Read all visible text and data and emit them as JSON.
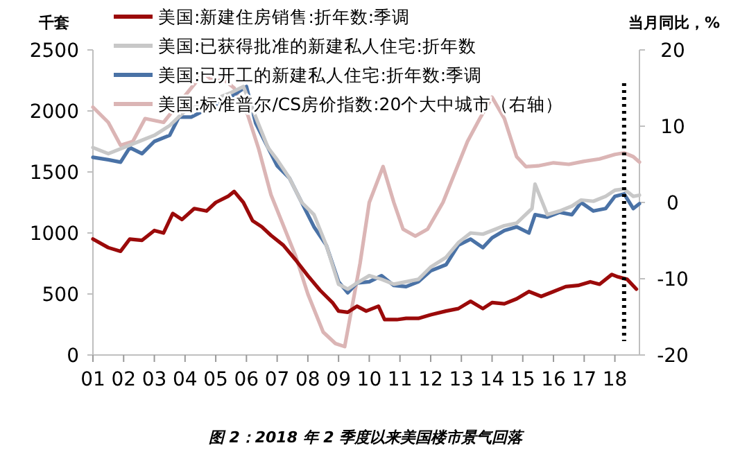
{
  "chart_data": {
    "type": "line",
    "title": "图 2：2018 年 2 季度以来美国楼市景气回落",
    "ylabel": "千套",
    "y2label": "当月同比，%",
    "xlim": [
      1,
      18.8
    ],
    "xticks": [
      {
        "value": 1,
        "label": "01"
      },
      {
        "value": 2,
        "label": "02"
      },
      {
        "value": 3,
        "label": "03"
      },
      {
        "value": 4,
        "label": "04"
      },
      {
        "value": 5,
        "label": "05"
      },
      {
        "value": 6,
        "label": "06"
      },
      {
        "value": 7,
        "label": "07"
      },
      {
        "value": 8,
        "label": "08"
      },
      {
        "value": 9,
        "label": "09"
      },
      10,
      11,
      12,
      13,
      14,
      15,
      16,
      17,
      18
    ],
    "ylim": [
      0,
      2500
    ],
    "yticks": [
      0,
      500,
      1000,
      1500,
      2000,
      2500
    ],
    "y2lim": [
      -20,
      20
    ],
    "y2ticks": [
      -20,
      -10,
      0,
      10,
      20
    ],
    "grid": false,
    "legend": "top left",
    "marker": "none",
    "line_style": "solid",
    "ref_lines": [
      {
        "axis": "x",
        "value": 18.3,
        "color": "#000000",
        "line_style": "dotted"
      }
    ],
    "series": [
      {
        "name": "美国:新建住房销售:折年数:季调",
        "color": "#9b0a0a",
        "x": [
          1.0,
          1.5,
          1.9,
          2.2,
          2.6,
          3.0,
          3.3,
          3.6,
          3.9,
          4.3,
          4.7,
          5.0,
          5.4,
          5.6,
          5.9,
          6.2,
          6.5,
          6.8,
          7.2,
          7.6,
          8.0,
          8.4,
          8.8,
          9.0,
          9.3,
          9.6,
          9.9,
          10.3,
          10.5,
          10.9,
          11.2,
          11.6,
          12.0,
          12.5,
          12.9,
          13.3,
          13.7,
          14.0,
          14.4,
          14.8,
          15.2,
          15.6,
          16.0,
          16.4,
          16.8,
          17.2,
          17.5,
          17.9,
          18.1,
          18.4,
          18.7
        ],
        "values": [
          950,
          880,
          850,
          950,
          940,
          1020,
          1000,
          1160,
          1110,
          1200,
          1180,
          1250,
          1300,
          1340,
          1250,
          1100,
          1050,
          980,
          900,
          780,
          650,
          530,
          430,
          360,
          350,
          400,
          360,
          400,
          290,
          290,
          300,
          300,
          330,
          360,
          380,
          440,
          380,
          430,
          420,
          460,
          520,
          480,
          520,
          560,
          570,
          600,
          580,
          660,
          640,
          620,
          540
        ]
      },
      {
        "name": "美国:已获得批准的新建私人住宅:折年数",
        "color": "#c8c8c8",
        "x": [
          1.0,
          1.5,
          2.0,
          2.5,
          3.0,
          3.5,
          4.0,
          4.5,
          5.0,
          5.5,
          5.9,
          6.3,
          6.7,
          7.0,
          7.4,
          7.8,
          8.2,
          8.6,
          9.0,
          9.3,
          9.6,
          10.0,
          10.4,
          10.8,
          11.2,
          11.6,
          12.0,
          12.5,
          12.9,
          13.3,
          13.7,
          14.0,
          14.4,
          14.8,
          15.3,
          15.4,
          15.8,
          16.2,
          16.6,
          16.9,
          17.3,
          17.7,
          18.0,
          18.3,
          18.6,
          18.8
        ],
        "values": [
          1700,
          1650,
          1700,
          1750,
          1800,
          1880,
          2000,
          2050,
          2100,
          2150,
          2200,
          1950,
          1700,
          1600,
          1450,
          1250,
          1150,
          900,
          580,
          540,
          590,
          650,
          620,
          580,
          600,
          620,
          720,
          800,
          920,
          1000,
          990,
          1020,
          1060,
          1080,
          1200,
          1400,
          1150,
          1180,
          1220,
          1270,
          1260,
          1300,
          1350,
          1360,
          1300,
          1310
        ]
      },
      {
        "name": "美国:已开工的新建私人住宅:折年数:季调",
        "color": "#4a72a6",
        "x": [
          1.0,
          1.5,
          1.9,
          2.2,
          2.6,
          3.0,
          3.5,
          3.8,
          4.2,
          4.6,
          5.0,
          5.4,
          5.7,
          6.0,
          6.3,
          6.6,
          7.0,
          7.4,
          7.8,
          8.2,
          8.6,
          9.0,
          9.3,
          9.6,
          10.0,
          10.4,
          10.8,
          11.2,
          11.6,
          12.0,
          12.5,
          12.9,
          13.3,
          13.7,
          14.0,
          14.4,
          14.8,
          15.2,
          15.4,
          15.8,
          16.2,
          16.6,
          16.9,
          17.3,
          17.7,
          18.0,
          18.3,
          18.6,
          18.8
        ],
        "values": [
          1620,
          1600,
          1580,
          1700,
          1650,
          1750,
          1800,
          1950,
          1950,
          2000,
          2050,
          2100,
          2150,
          2200,
          1900,
          1750,
          1550,
          1450,
          1250,
          1050,
          900,
          600,
          510,
          590,
          600,
          650,
          570,
          560,
          600,
          690,
          740,
          900,
          950,
          880,
          960,
          1020,
          1050,
          1000,
          1150,
          1130,
          1170,
          1150,
          1250,
          1180,
          1200,
          1300,
          1320,
          1200,
          1240
        ]
      },
      {
        "name": "美国:标准普尔/CS房价指数:20个大中城市（右轴）",
        "color": "#dbb5b5",
        "axis": "y2",
        "x": [
          1.0,
          1.5,
          1.9,
          2.3,
          2.7,
          3.3,
          3.8,
          4.2,
          4.6,
          4.9,
          5.3,
          5.6,
          6.0,
          6.4,
          6.8,
          7.2,
          7.6,
          8.0,
          8.5,
          8.9,
          9.2,
          9.7,
          10.0,
          10.45,
          10.8,
          11.1,
          11.5,
          11.9,
          12.4,
          12.8,
          13.2,
          13.6,
          14.0,
          14.4,
          14.8,
          15.1,
          15.5,
          16.0,
          16.5,
          17.0,
          17.5,
          18.0,
          18.3,
          18.6,
          18.8
        ],
        "values": [
          12.5,
          10.5,
          7.5,
          8,
          11,
          10.5,
          13,
          15,
          17,
          16,
          16,
          15,
          12,
          7,
          1,
          -3,
          -7,
          -12,
          -17,
          -18.5,
          -18.9,
          -8,
          0,
          4.7,
          0,
          -3.5,
          -4.4,
          -3.5,
          0,
          4,
          8,
          11,
          13.8,
          11,
          6,
          4.7,
          4.8,
          5.2,
          5,
          5.4,
          5.7,
          6.3,
          6.5,
          6,
          5.3
        ]
      }
    ]
  }
}
